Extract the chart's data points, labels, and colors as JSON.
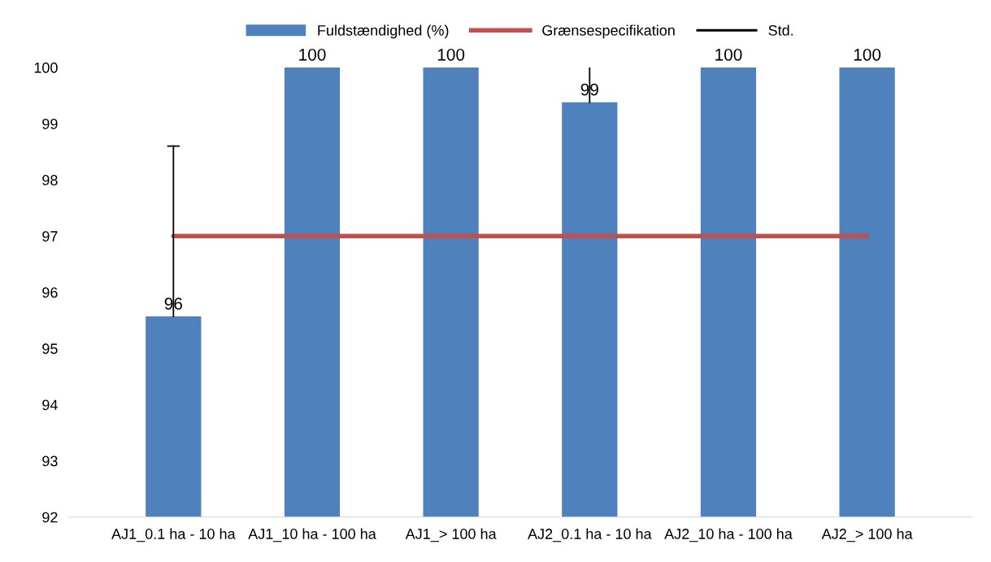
{
  "chart_data": {
    "type": "bar",
    "categories": [
      "AJ1_0.1 ha - 10 ha",
      "AJ1_10 ha - 100 ha",
      "AJ1_> 100 ha",
      "AJ2_0.1 ha - 10 ha",
      "AJ2_10 ha - 100 ha",
      "AJ2_> 100 ha"
    ],
    "series": [
      {
        "name": "Fuldstændighed (%)",
        "color": "#4f81bd",
        "values": [
          95.57,
          100,
          100,
          99.38,
          100,
          100
        ],
        "errors": [
          [
            95.57,
            98.6
          ],
          null,
          null,
          [
            99.38,
            100
          ],
          null,
          null
        ],
        "value_labels": [
          "96",
          "100",
          "100",
          "99",
          "100",
          "100"
        ]
      },
      {
        "name": "Grænsespecifikation",
        "type": "line",
        "color": "#c0504d",
        "values": [
          97,
          97,
          97,
          97,
          97,
          97
        ]
      }
    ],
    "annotations": [
      "Std."
    ],
    "ylim": [
      92,
      100
    ],
    "yticks": [
      92,
      93,
      94,
      95,
      96,
      97,
      98,
      99,
      100
    ],
    "grid": false,
    "legend": "top"
  }
}
